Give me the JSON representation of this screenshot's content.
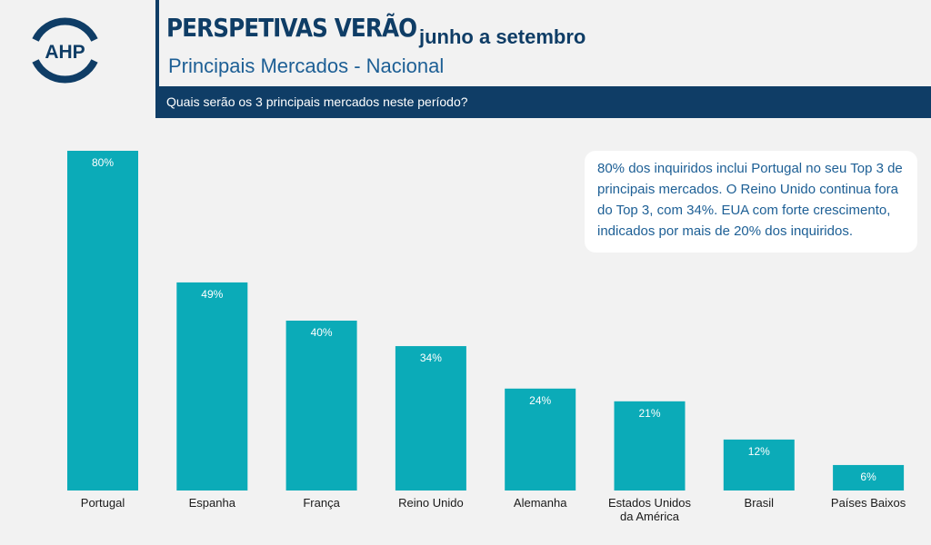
{
  "logo": {
    "text": "AHP",
    "color": "#0f3d66"
  },
  "header": {
    "title": "PERSPETIVAS VERÃO",
    "title_suffix": "junho a setembro",
    "subtitle": "Principais Mercados - Nacional",
    "question": "Quais serão os 3 principais mercados neste período?"
  },
  "callout": {
    "text": "80% dos inquiridos inclui Portugal no seu Top 3 de principais mercados. O Reino Unido continua fora do Top 3, com 34%. EUA com forte crescimento, indicados por mais de 20% dos inquiridos."
  },
  "colors": {
    "bar": "#0babb8",
    "header_navy": "#0f3d66",
    "text_blue": "#1d5f95",
    "background": "#f2f2f2"
  },
  "chart_data": {
    "type": "bar",
    "categories": [
      "Portugal",
      "Espanha",
      "França",
      "Reino Unido",
      "Alemanha",
      "Estados Unidos da América",
      "Brasil",
      "Países Baixos"
    ],
    "category_lines": [
      [
        "Portugal"
      ],
      [
        "Espanha"
      ],
      [
        "França"
      ],
      [
        "Reino Unido"
      ],
      [
        "Alemanha"
      ],
      [
        "Estados Unidos",
        "da América"
      ],
      [
        "Brasil"
      ],
      [
        "Países Baixos"
      ]
    ],
    "values": [
      80,
      49,
      40,
      34,
      24,
      21,
      12,
      6
    ],
    "value_labels": [
      "80%",
      "49%",
      "40%",
      "34%",
      "24%",
      "21%",
      "12%",
      "6%"
    ],
    "unit": "%",
    "ylim": [
      0,
      80
    ],
    "grid": false,
    "legend": "none"
  }
}
